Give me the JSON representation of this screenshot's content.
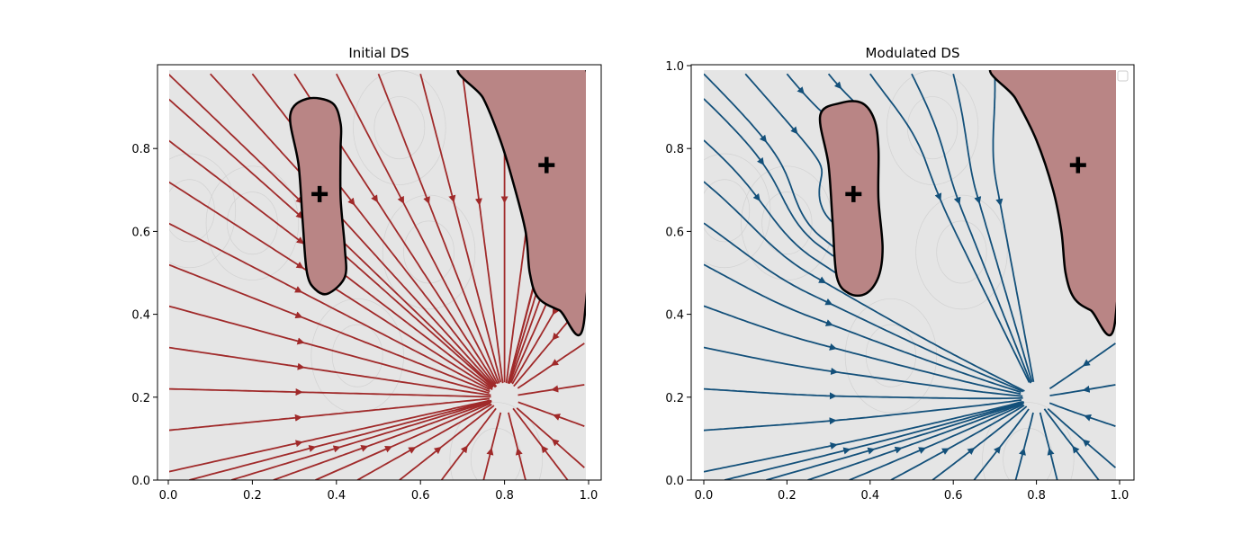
{
  "chart_data": [
    {
      "type": "streamplot",
      "title": "Initial DS",
      "xlabel": "",
      "ylabel": "",
      "xlim": [
        0,
        1
      ],
      "ylim": [
        0,
        1
      ],
      "xticks": [
        "0.0",
        "0.2",
        "0.4",
        "0.6",
        "0.8",
        "1.0"
      ],
      "yticks": [
        "0.0",
        "0.2",
        "0.4",
        "0.6",
        "0.8"
      ],
      "attractor": [
        0.8,
        0.2
      ],
      "stream_color": "#a02a2a",
      "obstacle_color": "#b98585",
      "background_color": "#e5e5e5",
      "modulated": false,
      "legend": false,
      "obstacles": [
        {
          "center": [
            0.36,
            0.69
          ],
          "marker": "+",
          "boundary": [
            [
              0.33,
              0.92
            ],
            [
              0.39,
              0.91
            ],
            [
              0.41,
              0.86
            ],
            [
              0.41,
              0.8
            ],
            [
              0.41,
              0.68
            ],
            [
              0.42,
              0.56
            ],
            [
              0.42,
              0.49
            ],
            [
              0.38,
              0.45
            ],
            [
              0.35,
              0.46
            ],
            [
              0.33,
              0.5
            ],
            [
              0.32,
              0.62
            ],
            [
              0.31,
              0.76
            ],
            [
              0.29,
              0.88
            ]
          ]
        },
        {
          "center": [
            0.9,
            0.76
          ],
          "marker": "+",
          "boundary": [
            [
              0.7,
              1.0
            ],
            [
              0.99,
              1.0
            ],
            [
              0.99,
              0.39
            ],
            [
              0.93,
              0.41
            ],
            [
              0.88,
              0.44
            ],
            [
              0.86,
              0.5
            ],
            [
              0.85,
              0.6
            ],
            [
              0.82,
              0.72
            ],
            [
              0.79,
              0.82
            ],
            [
              0.75,
              0.92
            ]
          ]
        }
      ]
    },
    {
      "type": "streamplot",
      "title": "Modulated DS",
      "xlabel": "",
      "ylabel": "",
      "xlim": [
        0,
        1
      ],
      "ylim": [
        0,
        1
      ],
      "xticks": [
        "0.0",
        "0.2",
        "0.4",
        "0.6",
        "0.8",
        "1.0"
      ],
      "yticks": [
        "0.0",
        "0.2",
        "0.4",
        "0.6",
        "0.8",
        "1.0"
      ],
      "attractor": [
        0.8,
        0.2
      ],
      "stream_color": "#13507a",
      "obstacle_color": "#b98585",
      "background_color": "#e5e5e5",
      "modulated": true,
      "legend": true,
      "obstacles": [
        {
          "center": [
            0.36,
            0.69
          ],
          "marker": "+",
          "boundary": [
            [
              0.33,
              0.91
            ],
            [
              0.38,
              0.91
            ],
            [
              0.41,
              0.87
            ],
            [
              0.42,
              0.8
            ],
            [
              0.42,
              0.68
            ],
            [
              0.43,
              0.56
            ],
            [
              0.42,
              0.49
            ],
            [
              0.39,
              0.45
            ],
            [
              0.35,
              0.45
            ],
            [
              0.32,
              0.49
            ],
            [
              0.31,
              0.62
            ],
            [
              0.3,
              0.76
            ],
            [
              0.28,
              0.88
            ]
          ]
        },
        {
          "center": [
            0.9,
            0.76
          ],
          "marker": "+",
          "boundary": [
            [
              0.7,
              1.0
            ],
            [
              0.99,
              1.0
            ],
            [
              0.99,
              0.39
            ],
            [
              0.93,
              0.41
            ],
            [
              0.89,
              0.44
            ],
            [
              0.87,
              0.5
            ],
            [
              0.86,
              0.6
            ],
            [
              0.84,
              0.7
            ],
            [
              0.8,
              0.82
            ],
            [
              0.75,
              0.92
            ]
          ]
        }
      ]
    }
  ]
}
